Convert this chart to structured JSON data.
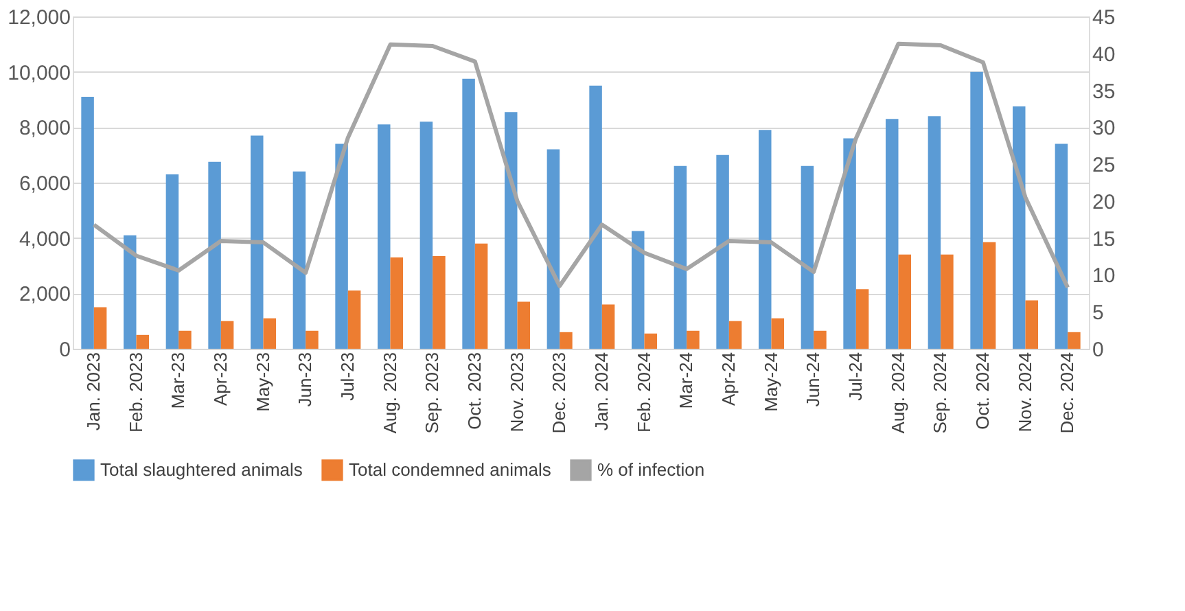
{
  "chart_data": {
    "type": "bar",
    "categories": [
      "Jan. 2023",
      "Feb. 2023",
      "Mar-23",
      "Apr-23",
      "May-23",
      "Jun-23",
      "Jul-23",
      "Aug. 2023",
      "Sep. 2023",
      "Oct. 2023",
      "Nov. 2023",
      "Dec. 2023",
      "Jan. 2024",
      "Feb. 2024",
      "Mar-24",
      "Apr-24",
      "May-24",
      "Jun-24",
      "Jul-24",
      "Aug. 2024",
      "Sep. 2024",
      "Oct. 2024",
      "Nov. 2024",
      "Dec. 2024"
    ],
    "series": [
      {
        "name": "Total slaughtered animals",
        "color": "#5b9bd5",
        "values": [
          9100,
          4100,
          6300,
          6750,
          7700,
          6400,
          7400,
          8100,
          8200,
          9750,
          8550,
          7200,
          9500,
          4250,
          6600,
          7000,
          7900,
          6600,
          7600,
          8300,
          8400,
          10000,
          8750,
          7400
        ]
      },
      {
        "name": "Total condemned animals",
        "color": "#ed7d31",
        "values": [
          1500,
          500,
          650,
          1000,
          1100,
          650,
          2100,
          3300,
          3350,
          3800,
          1700,
          600,
          1600,
          550,
          650,
          1000,
          1100,
          650,
          2150,
          3400,
          3400,
          3850,
          1750,
          600
        ]
      },
      {
        "name": "% of infection",
        "type": "line",
        "axis": "y2",
        "color": "#a5a5a5",
        "values": [
          16.8,
          12.6,
          10.6,
          14.6,
          14.4,
          10.3,
          28.6,
          41.2,
          41.0,
          38.9,
          20.0,
          8.5,
          16.8,
          13.0,
          10.8,
          14.6,
          14.4,
          10.4,
          28.5,
          41.3,
          41.1,
          38.8,
          20.5,
          8.3
        ]
      }
    ],
    "ylim": [
      0,
      12000
    ],
    "yticks": [
      0,
      {
        "value": 2000,
        "label": "2,000"
      },
      {
        "value": 4000,
        "label": "4,000"
      },
      {
        "value": 6000,
        "label": "6,000"
      },
      {
        "value": 8000,
        "label": "8,000"
      },
      {
        "value": 10000,
        "label": "10,000"
      },
      {
        "value": 12000,
        "label": "12,000"
      }
    ],
    "y2lim": [
      0,
      45
    ],
    "y2ticks": [
      0,
      5,
      10,
      15,
      20,
      25,
      30,
      35,
      40,
      45
    ],
    "grid": "y",
    "legend": "bottom",
    "marker": "none",
    "line_style": "solid"
  }
}
